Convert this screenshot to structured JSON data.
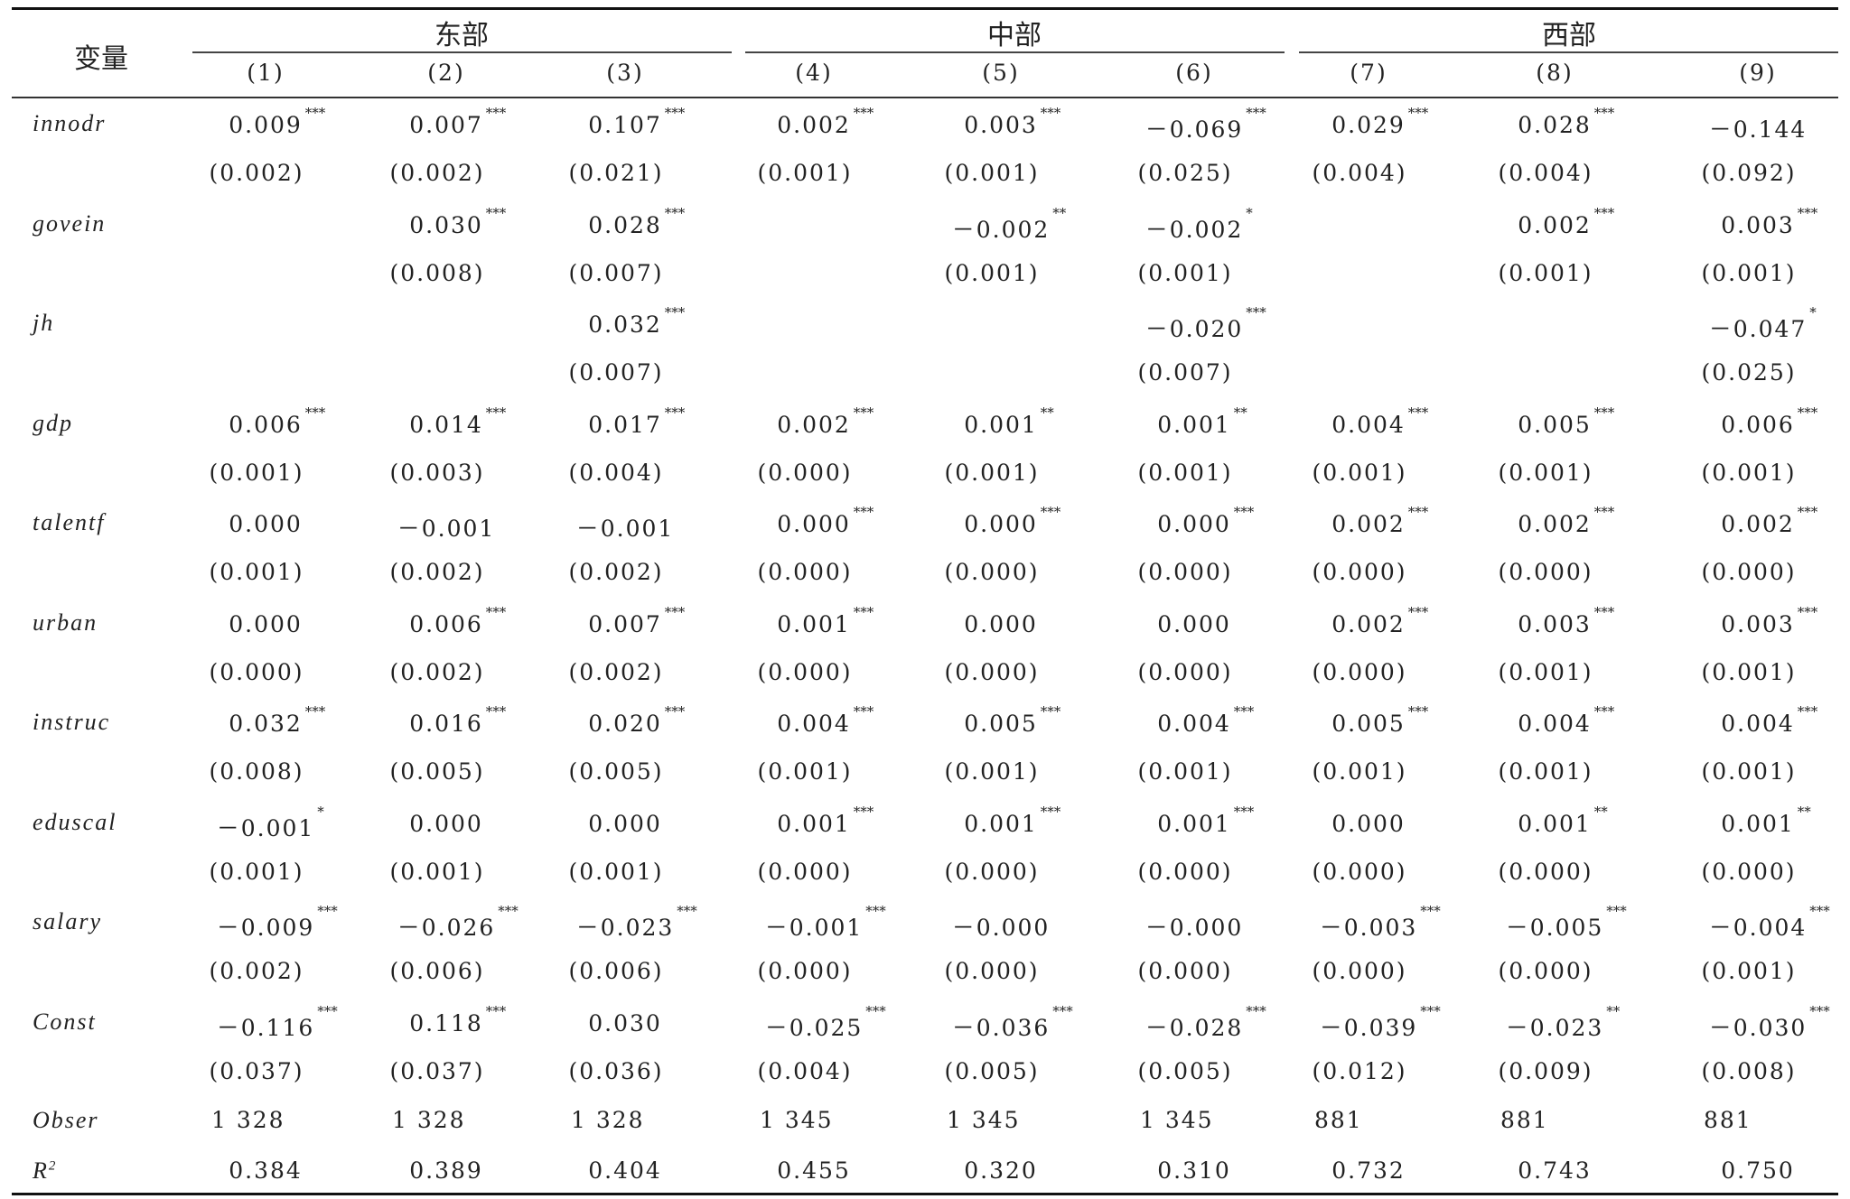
{
  "header": {
    "var_label": "变量",
    "groups": [
      "东部",
      "中部",
      "西部"
    ],
    "columns": [
      "(1)",
      "(2)",
      "(3)",
      "(4)",
      "(5)",
      "(6)",
      "(7)",
      "(8)",
      "(9)"
    ]
  },
  "rows": [
    {
      "name": "innodr",
      "coef": [
        "0.009",
        "0.007",
        "0.107",
        "0.002",
        "0.003",
        "－0.069",
        "0.029",
        "0.028",
        "－0.144"
      ],
      "stars": [
        "***",
        "***",
        "***",
        "***",
        "***",
        "***",
        "***",
        "***",
        ""
      ],
      "se": [
        "(0.002)",
        "(0.002)",
        "(0.021)",
        "(0.001)",
        "(0.001)",
        "(0.025)",
        "(0.004)",
        "(0.004)",
        "(0.092)"
      ]
    },
    {
      "name": "govein",
      "coef": [
        "",
        "0.030",
        "0.028",
        "",
        "－0.002",
        "－0.002",
        "",
        "0.002",
        "0.003"
      ],
      "stars": [
        "",
        "***",
        "***",
        "",
        "**",
        "*",
        "",
        "***",
        "***"
      ],
      "se": [
        "",
        "(0.008)",
        "(0.007)",
        "",
        "(0.001)",
        "(0.001)",
        "",
        "(0.001)",
        "(0.001)"
      ]
    },
    {
      "name": "jh",
      "coef": [
        "",
        "",
        "0.032",
        "",
        "",
        "－0.020",
        "",
        "",
        "－0.047"
      ],
      "stars": [
        "",
        "",
        "***",
        "",
        "",
        "***",
        "",
        "",
        "*"
      ],
      "se": [
        "",
        "",
        "(0.007)",
        "",
        "",
        "(0.007)",
        "",
        "",
        "(0.025)"
      ]
    },
    {
      "name": "gdp",
      "coef": [
        "0.006",
        "0.014",
        "0.017",
        "0.002",
        "0.001",
        "0.001",
        "0.004",
        "0.005",
        "0.006"
      ],
      "stars": [
        "***",
        "***",
        "***",
        "***",
        "**",
        "**",
        "***",
        "***",
        "***"
      ],
      "se": [
        "(0.001)",
        "(0.003)",
        "(0.004)",
        "(0.000)",
        "(0.001)",
        "(0.001)",
        "(0.001)",
        "(0.001)",
        "(0.001)"
      ]
    },
    {
      "name": "talentf",
      "coef": [
        "0.000",
        "－0.001",
        "－0.001",
        "0.000",
        "0.000",
        "0.000",
        "0.002",
        "0.002",
        "0.002"
      ],
      "stars": [
        "",
        "",
        "",
        "***",
        "***",
        "***",
        "***",
        "***",
        "***"
      ],
      "se": [
        "(0.001)",
        "(0.002)",
        "(0.002)",
        "(0.000)",
        "(0.000)",
        "(0.000)",
        "(0.000)",
        "(0.000)",
        "(0.000)"
      ]
    },
    {
      "name": "urban",
      "coef": [
        "0.000",
        "0.006",
        "0.007",
        "0.001",
        "0.000",
        "0.000",
        "0.002",
        "0.003",
        "0.003"
      ],
      "stars": [
        "",
        "***",
        "***",
        "***",
        "",
        "",
        "***",
        "***",
        "***"
      ],
      "se": [
        "(0.000)",
        "(0.002)",
        "(0.002)",
        "(0.000)",
        "(0.000)",
        "(0.000)",
        "(0.000)",
        "(0.001)",
        "(0.001)"
      ]
    },
    {
      "name": "instruc",
      "coef": [
        "0.032",
        "0.016",
        "0.020",
        "0.004",
        "0.005",
        "0.004",
        "0.005",
        "0.004",
        "0.004"
      ],
      "stars": [
        "***",
        "***",
        "***",
        "***",
        "***",
        "***",
        "***",
        "***",
        "***"
      ],
      "se": [
        "(0.008)",
        "(0.005)",
        "(0.005)",
        "(0.001)",
        "(0.001)",
        "(0.001)",
        "(0.001)",
        "(0.001)",
        "(0.001)"
      ]
    },
    {
      "name": "eduscal",
      "coef": [
        "－0.001",
        "0.000",
        "0.000",
        "0.001",
        "0.001",
        "0.001",
        "0.000",
        "0.001",
        "0.001"
      ],
      "stars": [
        "*",
        "",
        "",
        "***",
        "***",
        "***",
        "",
        "**",
        "**"
      ],
      "se": [
        "(0.001)",
        "(0.001)",
        "(0.001)",
        "(0.000)",
        "(0.000)",
        "(0.000)",
        "(0.000)",
        "(0.000)",
        "(0.000)"
      ]
    },
    {
      "name": "salary",
      "coef": [
        "－0.009",
        "－0.026",
        "－0.023",
        "－0.001",
        "－0.000",
        "－0.000",
        "－0.003",
        "－0.005",
        "－0.004"
      ],
      "stars": [
        "***",
        "***",
        "***",
        "***",
        "",
        "",
        "***",
        "***",
        "***"
      ],
      "se": [
        "(0.002)",
        "(0.006)",
        "(0.006)",
        "(0.000)",
        "(0.000)",
        "(0.000)",
        "(0.000)",
        "(0.000)",
        "(0.001)"
      ]
    },
    {
      "name": "Const",
      "coef": [
        "－0.116",
        "0.118",
        "0.030",
        "－0.025",
        "－0.036",
        "－0.028",
        "－0.039",
        "－0.023",
        "－0.030"
      ],
      "stars": [
        "***",
        "***",
        "",
        "***",
        "***",
        "***",
        "***",
        "**",
        "***"
      ],
      "se": [
        "(0.037)",
        "(0.037)",
        "(0.036)",
        "(0.004)",
        "(0.005)",
        "(0.005)",
        "(0.012)",
        "(0.009)",
        "(0.008)"
      ]
    }
  ],
  "obser": {
    "name": "Obser",
    "values": [
      "1 328",
      "1 328",
      "1 328",
      "1 345",
      "1 345",
      "1 345",
      "881",
      "881",
      "881"
    ]
  },
  "r2": {
    "name": "R",
    "sup": "2",
    "values": [
      "0.384",
      "0.389",
      "0.404",
      "0.455",
      "0.320",
      "0.310",
      "0.732",
      "0.743",
      "0.750"
    ]
  }
}
